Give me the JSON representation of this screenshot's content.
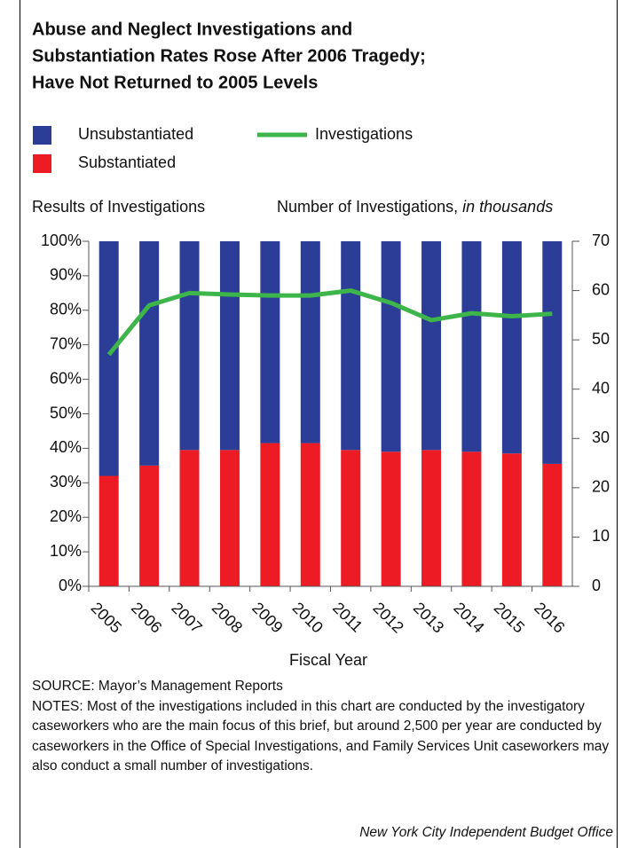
{
  "chart_data": {
    "type": "bar",
    "title": [
      "Abuse and Neglect Investigations and",
      "Substantiation Rates Rose After 2006 Tragedy;",
      "Have Not Returned to 2005 Levels"
    ],
    "ylabel": "Results of Investigations",
    "y2label": "Number of Investigations,",
    "y2label_unit": "in thousands",
    "xlabel": "Fiscal Year",
    "categories": [
      "2005",
      "2006",
      "2007",
      "2008",
      "2009",
      "2010",
      "2011",
      "2012",
      "2013",
      "2014",
      "2015",
      "2016"
    ],
    "series": [
      {
        "name": "Substantiated",
        "type": "bar",
        "color": "#ed1c24",
        "values": [
          32,
          35,
          39.5,
          39.5,
          41.5,
          41.5,
          39.5,
          39,
          39.5,
          39,
          38.5,
          35.5
        ]
      },
      {
        "name": "Unsubstantiated",
        "type": "bar",
        "color": "#2b3d96",
        "values": [
          68,
          65,
          60.5,
          60.5,
          58.5,
          58.5,
          60.5,
          61,
          60.5,
          61,
          61.5,
          64.5
        ]
      },
      {
        "name": "Investigations",
        "type": "line",
        "axis": "y2",
        "color": "#3db54a",
        "values": [
          47,
          57,
          59.5,
          59.2,
          59,
          59,
          60,
          57.5,
          54,
          55.4,
          54.8,
          55.3
        ]
      }
    ],
    "ylim": [
      0,
      100
    ],
    "yticks": [
      {
        "value": 0,
        "label": "0%"
      },
      {
        "value": 10,
        "label": "10%"
      },
      {
        "value": 20,
        "label": "20%"
      },
      {
        "value": 30,
        "label": "30%"
      },
      {
        "value": 40,
        "label": "40%"
      },
      {
        "value": 50,
        "label": "50%"
      },
      {
        "value": 60,
        "label": "60%"
      },
      {
        "value": 70,
        "label": "70%"
      },
      {
        "value": 80,
        "label": "80%"
      },
      {
        "value": 90,
        "label": "90%"
      },
      {
        "value": 100,
        "label": "100%"
      }
    ],
    "y2lim": [
      0,
      70
    ],
    "y2ticks": [
      0,
      10,
      20,
      30,
      40,
      50,
      60,
      70
    ],
    "stacked": true
  },
  "source": "SOURCE: Mayor’s Management Reports",
  "notes": "NOTES: Most of the investigations included in this chart are conducted by the investigatory caseworkers who are the main focus of this brief, but around 2,500 per year are conducted by caseworkers in the Office of Special Investigations, and Family Services Unit caseworkers may also conduct a small number of investigations.",
  "credit": "New York City Independent Budget Office"
}
